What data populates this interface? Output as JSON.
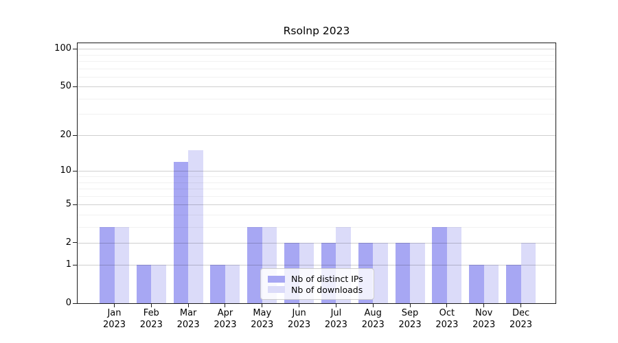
{
  "title": "Rsolnp 2023",
  "chart_data": {
    "type": "bar",
    "title": "Rsolnp 2023",
    "categories": [
      "Jan 2023",
      "Feb 2023",
      "Mar 2023",
      "Apr 2023",
      "May 2023",
      "Jun 2023",
      "Jul 2023",
      "Aug 2023",
      "Sep 2023",
      "Oct 2023",
      "Nov 2023",
      "Dec 2023"
    ],
    "series": [
      {
        "name": "Nb of distinct IPs",
        "color": "#a7a7f3",
        "values": [
          3,
          1,
          12,
          1,
          3,
          2,
          2,
          2,
          2,
          3,
          1,
          1
        ]
      },
      {
        "name": "Nb of downloads",
        "color": "#dbdbf9",
        "values": [
          3,
          1,
          15,
          1,
          3,
          2,
          3,
          2,
          2,
          3,
          1,
          2
        ]
      }
    ],
    "xlabel": "",
    "ylabel": "",
    "y_scale": "log1p",
    "ylim": [
      0,
      111
    ],
    "y_major_ticks": [
      100,
      50,
      20,
      10,
      5,
      2,
      1,
      0
    ],
    "y_minor_gridlines": [
      3,
      4,
      6,
      7,
      8,
      9,
      30,
      40,
      60,
      70,
      80,
      90
    ],
    "grid": "on",
    "legend_position": "lower-center-inside"
  },
  "x_axis": {
    "months": [
      "Jan",
      "Feb",
      "Mar",
      "Apr",
      "May",
      "Jun",
      "Jul",
      "Aug",
      "Sep",
      "Oct",
      "Nov",
      "Dec"
    ],
    "year": "2023"
  },
  "y_axis": {
    "tick_labels": [
      "100",
      "50",
      "20",
      "10",
      "5",
      "2",
      "1",
      "0"
    ]
  },
  "legend": {
    "items": [
      {
        "label": "Nb of distinct IPs",
        "color": "#a7a7f3"
      },
      {
        "label": "Nb of downloads",
        "color": "#dbdbf9"
      }
    ]
  },
  "colors": {
    "bar_distinct_ips": "#a7a7f3",
    "bar_downloads": "#dbdbf9",
    "grid_major": "#cdcdcd",
    "grid_minor": "#ececec",
    "axis": "#1a1a1a",
    "legend_border": "#cccccc",
    "background": "#ffffff"
  }
}
